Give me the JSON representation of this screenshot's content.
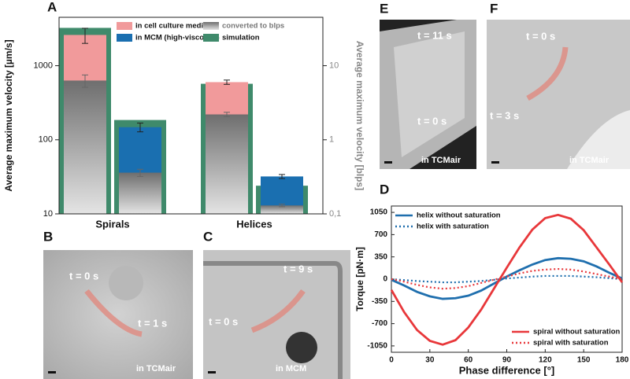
{
  "chart_data": [
    {
      "type": "bar",
      "panel": "A",
      "log_scale": true,
      "ylabel": "Average maximum velocity [µm/s]",
      "y2label": "Average maximum velocity [blps]",
      "categories": [
        "Spirals",
        "Helices"
      ],
      "ylim": [
        10,
        4500
      ],
      "yticks": [
        10,
        100,
        1000
      ],
      "y2lim": [
        0.1,
        45
      ],
      "y2ticks": [
        {
          "value": 0.1,
          "label": "0,1"
        },
        1,
        10
      ],
      "series": [
        {
          "name": "in cell culture medium",
          "color": "#f19a9b",
          "values": [
            2600,
            600
          ],
          "errors": [
            600,
            40
          ]
        },
        {
          "name": "in MCM (high-viscosity)",
          "color": "#1a6fb0",
          "values": [
            148,
            32
          ],
          "errors": [
            20,
            2
          ]
        },
        {
          "name": "converted to blps",
          "color": "#8a8a8a",
          "axis": "y2",
          "values": [
            [
              6.3,
              0.36
            ],
            [
              2.2,
              0.13
            ]
          ],
          "errors": [
            [
              1.2,
              0.04
            ],
            [
              0.15,
              0.005
            ]
          ]
        },
        {
          "name": "simulation",
          "color": "#3f8a6b",
          "values": [
            [
              3240,
              185
            ],
            [
              570,
              24
            ]
          ]
        }
      ]
    },
    {
      "type": "line",
      "panel": "D",
      "xlabel": "Phase difference [°]",
      "ylabel": "Torque [pN·m]",
      "x": [
        0,
        10,
        20,
        30,
        40,
        50,
        60,
        70,
        80,
        90,
        100,
        110,
        120,
        130,
        140,
        150,
        160,
        170,
        180
      ],
      "xlim": [
        0,
        180
      ],
      "xticks": [
        0,
        30,
        60,
        90,
        120,
        150,
        180
      ],
      "ylim": [
        -1150,
        1150
      ],
      "yticks": [
        -1050,
        -700,
        -350,
        0,
        350,
        700,
        1050
      ],
      "series": [
        {
          "name": "helix without saturation",
          "color": "#1f6fae",
          "dash": false,
          "legend": "upper-left",
          "values": [
            -10,
            -100,
            -200,
            -270,
            -310,
            -300,
            -260,
            -180,
            -70,
            40,
            140,
            230,
            300,
            330,
            320,
            280,
            200,
            100,
            10
          ]
        },
        {
          "name": "helix with saturation",
          "color": "#1f6fae",
          "dash": true,
          "legend": "upper-left",
          "values": [
            0,
            -15,
            -30,
            -40,
            -50,
            -50,
            -40,
            -30,
            -10,
            10,
            25,
            40,
            50,
            50,
            50,
            40,
            30,
            15,
            0
          ]
        },
        {
          "name": "spiral without saturation",
          "color": "#e8373a",
          "dash": false,
          "legend": "lower-right",
          "values": [
            -170,
            -520,
            -800,
            -970,
            -1030,
            -960,
            -760,
            -480,
            -150,
            180,
            500,
            780,
            960,
            1010,
            950,
            770,
            500,
            230,
            -50
          ]
        },
        {
          "name": "spiral with saturation",
          "color": "#e8373a",
          "dash": true,
          "legend": "lower-right",
          "values": [
            0,
            -40,
            -90,
            -130,
            -150,
            -140,
            -110,
            -60,
            -10,
            40,
            90,
            130,
            150,
            160,
            150,
            120,
            80,
            40,
            0
          ]
        }
      ]
    }
  ],
  "images": [
    {
      "letter": "B",
      "labels": [
        "t = 0 s",
        "t = 1 s"
      ],
      "medium": "in TCMair"
    },
    {
      "letter": "C",
      "labels": [
        "t = 0 s",
        "t = 9 s"
      ],
      "medium": "in MCM"
    },
    {
      "letter": "E",
      "labels": [
        "t = 11 s",
        "t = 0 s"
      ],
      "medium": "in TCMair"
    },
    {
      "letter": "F",
      "labels": [
        "t = 0 s",
        "t = 3 s"
      ],
      "medium": "in TCMair"
    }
  ]
}
